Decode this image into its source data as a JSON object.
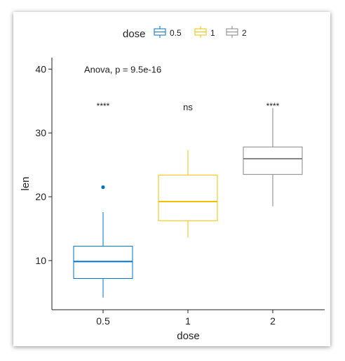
{
  "chart_data": {
    "type": "box",
    "xlabel": "dose",
    "ylabel": "len",
    "ylim": [
      2.3,
      41.8
    ],
    "yticks": [
      10,
      20,
      30,
      40
    ],
    "categories": [
      "0.5",
      "1",
      "2"
    ],
    "legend": {
      "title": "dose",
      "placement": "top",
      "items": [
        {
          "label": "0.5",
          "color": "#0073C2"
        },
        {
          "label": "1",
          "color": "#EFC000"
        },
        {
          "label": "2",
          "color": "#868686"
        }
      ]
    },
    "boxes": [
      {
        "category": "0.5",
        "color": "#0073C2",
        "lower_whisker": 4.2,
        "q1": 7.2,
        "median": 9.85,
        "q3": 12.25,
        "upper_whisker": 17.6,
        "outliers": [
          21.5
        ]
      },
      {
        "category": "1",
        "color": "#EFC000",
        "lower_whisker": 13.6,
        "q1": 16.25,
        "median": 19.25,
        "q3": 23.4,
        "upper_whisker": 27.3,
        "outliers": []
      },
      {
        "category": "2",
        "color": "#868686",
        "lower_whisker": 18.5,
        "q1": 23.5,
        "median": 25.95,
        "q3": 27.8,
        "upper_whisker": 33.9,
        "outliers": []
      }
    ],
    "annotations": {
      "test": "Anova, p = 9.5e-16",
      "test_y": 40,
      "significance": [
        {
          "category": "0.5",
          "label": "****",
          "y": 34
        },
        {
          "category": "1",
          "label": "ns",
          "y": 34
        },
        {
          "category": "2",
          "label": "****",
          "y": 34
        }
      ]
    },
    "grid": false
  }
}
